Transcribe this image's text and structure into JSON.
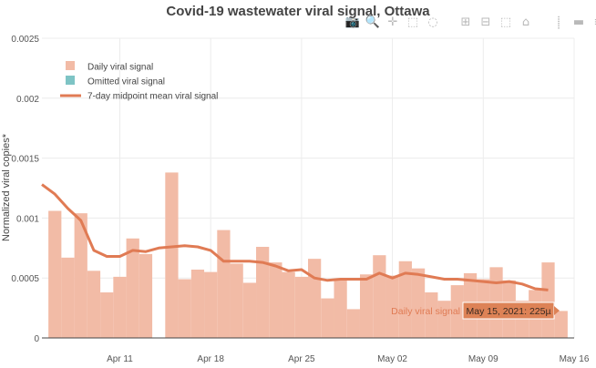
{
  "chart_data": {
    "type": "bar",
    "title": "Covid-19 wastewater viral signal, Ottawa",
    "ylabel": "Normalized viral copies*",
    "xlabel": "",
    "ylim": [
      0,
      0.0025
    ],
    "xlim": [
      "2021-04-05",
      "2021-05-16"
    ],
    "y_ticks": [
      {
        "value": 0,
        "label": "0"
      },
      {
        "value": 0.0005,
        "label": "0.0005"
      },
      {
        "value": 0.001,
        "label": "0.001"
      },
      {
        "value": 0.0015,
        "label": "0.0015"
      },
      {
        "value": 0.002,
        "label": "0.002"
      },
      {
        "value": 0.0025,
        "label": "0.0025"
      }
    ],
    "x_ticks": [
      {
        "date": "2021-04-11",
        "label": "Apr 11"
      },
      {
        "date": "2021-04-18",
        "label": "Apr 18"
      },
      {
        "date": "2021-04-25",
        "label": "Apr 25"
      },
      {
        "date": "2021-05-02",
        "label": "May 02"
      },
      {
        "date": "2021-05-09",
        "label": "May 09"
      },
      {
        "date": "2021-05-16",
        "label": "May 16"
      }
    ],
    "grid": true,
    "legend_position": "top-left",
    "legend": [
      {
        "label": "Daily viral signal",
        "kind": "bar",
        "color": "#f2bba6"
      },
      {
        "label": "Omitted viral signal",
        "kind": "bar",
        "color": "#7ec4c5"
      },
      {
        "label": "7-day midpoint mean viral signal",
        "kind": "line",
        "color": "#e07b54"
      }
    ],
    "series": [
      {
        "name": "Daily viral signal",
        "kind": "bar",
        "color": "#f2bba6",
        "points": [
          {
            "date": "2021-04-06",
            "value": 0.00106
          },
          {
            "date": "2021-04-07",
            "value": 0.00067
          },
          {
            "date": "2021-04-08",
            "value": 0.00104
          },
          {
            "date": "2021-04-09",
            "value": 0.00056
          },
          {
            "date": "2021-04-10",
            "value": 0.00038
          },
          {
            "date": "2021-04-11",
            "value": 0.00051
          },
          {
            "date": "2021-04-12",
            "value": 0.00083
          },
          {
            "date": "2021-04-13",
            "value": 0.0007
          },
          {
            "date": "2021-04-15",
            "value": 0.00138
          },
          {
            "date": "2021-04-16",
            "value": 0.00049
          },
          {
            "date": "2021-04-17",
            "value": 0.00057
          },
          {
            "date": "2021-04-18",
            "value": 0.00055
          },
          {
            "date": "2021-04-19",
            "value": 0.0009
          },
          {
            "date": "2021-04-20",
            "value": 0.00062
          },
          {
            "date": "2021-04-21",
            "value": 0.00046
          },
          {
            "date": "2021-04-22",
            "value": 0.00076
          },
          {
            "date": "2021-04-23",
            "value": 0.00063
          },
          {
            "date": "2021-04-24",
            "value": 0.00055
          },
          {
            "date": "2021-04-25",
            "value": 0.00051
          },
          {
            "date": "2021-04-26",
            "value": 0.00066
          },
          {
            "date": "2021-04-27",
            "value": 0.00033
          },
          {
            "date": "2021-04-28",
            "value": 0.00048
          },
          {
            "date": "2021-04-29",
            "value": 0.00024
          },
          {
            "date": "2021-04-30",
            "value": 0.00053
          },
          {
            "date": "2021-05-01",
            "value": 0.00069
          },
          {
            "date": "2021-05-02",
            "value": 0.00052
          },
          {
            "date": "2021-05-03",
            "value": 0.00064
          },
          {
            "date": "2021-05-04",
            "value": 0.00058
          },
          {
            "date": "2021-05-05",
            "value": 0.00038
          },
          {
            "date": "2021-05-06",
            "value": 0.00031
          },
          {
            "date": "2021-05-07",
            "value": 0.00044
          },
          {
            "date": "2021-05-08",
            "value": 0.00054
          },
          {
            "date": "2021-05-09",
            "value": 0.00049
          },
          {
            "date": "2021-05-10",
            "value": 0.00059
          },
          {
            "date": "2021-05-11",
            "value": 0.00048
          },
          {
            "date": "2021-05-12",
            "value": 0.00031
          },
          {
            "date": "2021-05-13",
            "value": 0.0004
          },
          {
            "date": "2021-05-14",
            "value": 0.00063
          },
          {
            "date": "2021-05-15",
            "value": 0.000225
          }
        ]
      },
      {
        "name": "7-day midpoint mean viral signal",
        "kind": "line",
        "color": "#e07b54",
        "points": [
          {
            "date": "2021-04-05",
            "value": 0.00128
          },
          {
            "date": "2021-04-06",
            "value": 0.0012
          },
          {
            "date": "2021-04-07",
            "value": 0.00108
          },
          {
            "date": "2021-04-08",
            "value": 0.00098
          },
          {
            "date": "2021-04-09",
            "value": 0.00073
          },
          {
            "date": "2021-04-10",
            "value": 0.00068
          },
          {
            "date": "2021-04-11",
            "value": 0.00068
          },
          {
            "date": "2021-04-12",
            "value": 0.00073
          },
          {
            "date": "2021-04-13",
            "value": 0.00072
          },
          {
            "date": "2021-04-14",
            "value": 0.00075
          },
          {
            "date": "2021-04-15",
            "value": 0.00076
          },
          {
            "date": "2021-04-16",
            "value": 0.00077
          },
          {
            "date": "2021-04-17",
            "value": 0.00076
          },
          {
            "date": "2021-04-18",
            "value": 0.00073
          },
          {
            "date": "2021-04-19",
            "value": 0.00064
          },
          {
            "date": "2021-04-20",
            "value": 0.00064
          },
          {
            "date": "2021-04-21",
            "value": 0.00064
          },
          {
            "date": "2021-04-22",
            "value": 0.00063
          },
          {
            "date": "2021-04-23",
            "value": 0.0006
          },
          {
            "date": "2021-04-24",
            "value": 0.00056
          },
          {
            "date": "2021-04-25",
            "value": 0.00057
          },
          {
            "date": "2021-04-26",
            "value": 0.0005
          },
          {
            "date": "2021-04-27",
            "value": 0.00048
          },
          {
            "date": "2021-04-28",
            "value": 0.00049
          },
          {
            "date": "2021-04-29",
            "value": 0.00049
          },
          {
            "date": "2021-04-30",
            "value": 0.00049
          },
          {
            "date": "2021-05-01",
            "value": 0.00054
          },
          {
            "date": "2021-05-02",
            "value": 0.0005
          },
          {
            "date": "2021-05-03",
            "value": 0.00054
          },
          {
            "date": "2021-05-04",
            "value": 0.00053
          },
          {
            "date": "2021-05-05",
            "value": 0.00051
          },
          {
            "date": "2021-05-06",
            "value": 0.00049
          },
          {
            "date": "2021-05-07",
            "value": 0.00049
          },
          {
            "date": "2021-05-08",
            "value": 0.00048
          },
          {
            "date": "2021-05-09",
            "value": 0.00047
          },
          {
            "date": "2021-05-10",
            "value": 0.00046
          },
          {
            "date": "2021-05-11",
            "value": 0.00047
          },
          {
            "date": "2021-05-12",
            "value": 0.00045
          },
          {
            "date": "2021-05-13",
            "value": 0.00041
          },
          {
            "date": "2021-05-14",
            "value": 0.0004
          }
        ]
      }
    ],
    "hover": {
      "series_label": "Daily viral signal",
      "text": "May 15, 2021: 225µ"
    }
  },
  "colors": {
    "bar": "#f2bba6",
    "omitted": "#7ec4c5",
    "line": "#e07b54",
    "grid": "#ececec",
    "hover_bg": "#dd8256"
  },
  "modebar": [
    {
      "icon": "camera-icon",
      "glyph": "📷"
    },
    {
      "icon": "zoom-icon",
      "glyph": "🔍"
    },
    {
      "icon": "pan-icon",
      "glyph": "✛"
    },
    {
      "icon": "box-select-icon",
      "glyph": "⬚"
    },
    {
      "icon": "lasso-select-icon",
      "glyph": "◌"
    },
    {
      "icon": "zoom-in-icon",
      "glyph": "⊞"
    },
    {
      "icon": "zoom-out-icon",
      "glyph": "⊟"
    },
    {
      "icon": "autoscale-icon",
      "glyph": "⬚"
    },
    {
      "icon": "reset-axes-icon",
      "glyph": "⌂"
    },
    {
      "icon": "spike-lines-icon",
      "glyph": "⸽"
    },
    {
      "icon": "hover-closest-icon",
      "glyph": "▬"
    },
    {
      "icon": "hover-compare-icon",
      "glyph": "≡"
    },
    {
      "icon": "plotly-logo-icon",
      "glyph": "▐"
    }
  ]
}
